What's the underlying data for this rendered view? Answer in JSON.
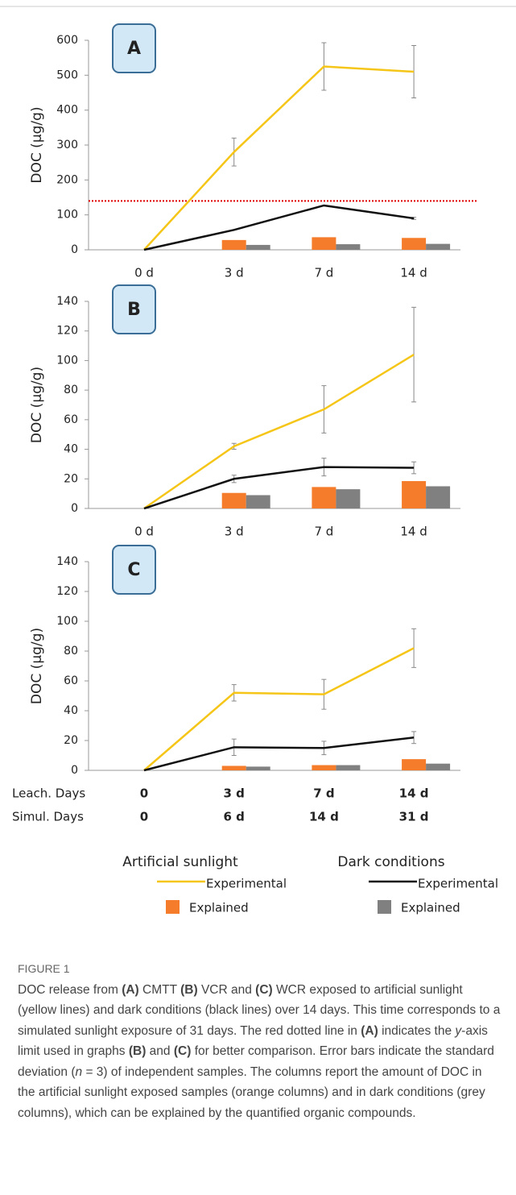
{
  "chart_data": [
    {
      "type": "combo",
      "panel_label": "A",
      "y_label": "DOC  (µg/g)",
      "categories": [
        "0 d",
        "3 d",
        "7 d",
        "14 d"
      ],
      "ylim": [
        0,
        600
      ],
      "yticks": [
        0,
        100,
        200,
        300,
        400,
        500,
        600
      ],
      "reference_line": {
        "value": 140,
        "color": "#e00000"
      },
      "series": [
        {
          "kind": "bar",
          "color": "#f57c2a",
          "values": [
            null,
            28,
            36,
            34
          ]
        },
        {
          "kind": "bar",
          "color": "#808080",
          "values": [
            null,
            14,
            16,
            17
          ]
        },
        {
          "kind": "line",
          "color": "#f5c518",
          "values": [
            0,
            280,
            525,
            510
          ],
          "errors": [
            null,
            40,
            68,
            75
          ]
        },
        {
          "kind": "line",
          "color": "#111111",
          "values": [
            0,
            57,
            127,
            90
          ],
          "errors": [
            null,
            null,
            null,
            3
          ]
        }
      ]
    },
    {
      "type": "combo",
      "panel_label": "B",
      "y_label": "DOC  (µg/g)",
      "categories": [
        "0 d",
        "3 d",
        "7 d",
        "14 d"
      ],
      "ylim": [
        0,
        140
      ],
      "yticks": [
        0,
        20,
        40,
        60,
        80,
        100,
        120,
        140
      ],
      "series": [
        {
          "kind": "bar",
          "color": "#f57c2a",
          "values": [
            null,
            10.5,
            14.5,
            18.5
          ]
        },
        {
          "kind": "bar",
          "color": "#808080",
          "values": [
            null,
            9,
            13,
            15
          ]
        },
        {
          "kind": "line",
          "color": "#f5c518",
          "values": [
            0,
            42,
            67,
            104
          ],
          "errors": [
            null,
            2,
            16,
            32
          ]
        },
        {
          "kind": "line",
          "color": "#111111",
          "values": [
            0,
            20,
            28,
            27.5
          ],
          "errors": [
            null,
            2.5,
            6,
            4
          ]
        }
      ]
    },
    {
      "type": "combo",
      "panel_label": "C",
      "y_label": "DOC  (µg/g)",
      "categories": [
        "0",
        "3 d",
        "7 d",
        "14 d"
      ],
      "category_title": "Leach. Days",
      "second_row": {
        "title": "Simul. Days",
        "labels": [
          "0",
          "6 d",
          "14 d",
          "31 d"
        ]
      },
      "ylim": [
        0,
        140
      ],
      "yticks": [
        0,
        20,
        40,
        60,
        80,
        100,
        120,
        140
      ],
      "series": [
        {
          "kind": "bar",
          "color": "#f57c2a",
          "values": [
            null,
            3,
            3.5,
            7.5
          ]
        },
        {
          "kind": "bar",
          "color": "#808080",
          "values": [
            null,
            2.5,
            3.5,
            4.5
          ]
        },
        {
          "kind": "line",
          "color": "#f5c518",
          "values": [
            0,
            52,
            51,
            82
          ],
          "errors": [
            null,
            5.5,
            10,
            13
          ]
        },
        {
          "kind": "line",
          "color": "#111111",
          "values": [
            0,
            15.5,
            15,
            22
          ],
          "errors": [
            null,
            5.5,
            4.5,
            4
          ]
        }
      ]
    }
  ],
  "legend": {
    "groups": [
      {
        "title": "Artificial sunlight",
        "entries": [
          {
            "label": "Experimental",
            "kind": "line",
            "color": "#f5c518"
          },
          {
            "label": "Explained",
            "kind": "bar",
            "color": "#f57c2a"
          }
        ]
      },
      {
        "title": "Dark conditions",
        "entries": [
          {
            "label": "Experimental",
            "kind": "line",
            "color": "#111111"
          },
          {
            "label": "Explained",
            "kind": "bar",
            "color": "#808080"
          }
        ]
      }
    ]
  },
  "caption": {
    "title": "FIGURE 1",
    "parts": [
      {
        "text": "DOC release from "
      },
      {
        "text": "(A)",
        "style": "bold"
      },
      {
        "text": " CMTT "
      },
      {
        "text": "(B)",
        "style": "bold"
      },
      {
        "text": " VCR and "
      },
      {
        "text": "(C)",
        "style": "bold"
      },
      {
        "text": " WCR exposed to artificial sunlight (yellow lines) and dark conditions (black lines) over 14 days. This time corresponds to a simulated sunlight exposure of 31 days. The red dotted line in "
      },
      {
        "text": "(A)",
        "style": "bold"
      },
      {
        "text": " indicates the "
      },
      {
        "text": "y",
        "style": "italic"
      },
      {
        "text": "-axis limit used in graphs "
      },
      {
        "text": "(B)",
        "style": "bold"
      },
      {
        "text": " and "
      },
      {
        "text": "(C)",
        "style": "bold"
      },
      {
        "text": " for better comparison. Error bars indicate the standard deviation ("
      },
      {
        "text": "n",
        "style": "italic"
      },
      {
        "text": " = 3) of independent samples. The columns report the amount of DOC in the artificial sunlight exposed samples (orange columns) and in dark conditions (grey columns), which can be explained by the quantified organic compounds."
      }
    ]
  }
}
